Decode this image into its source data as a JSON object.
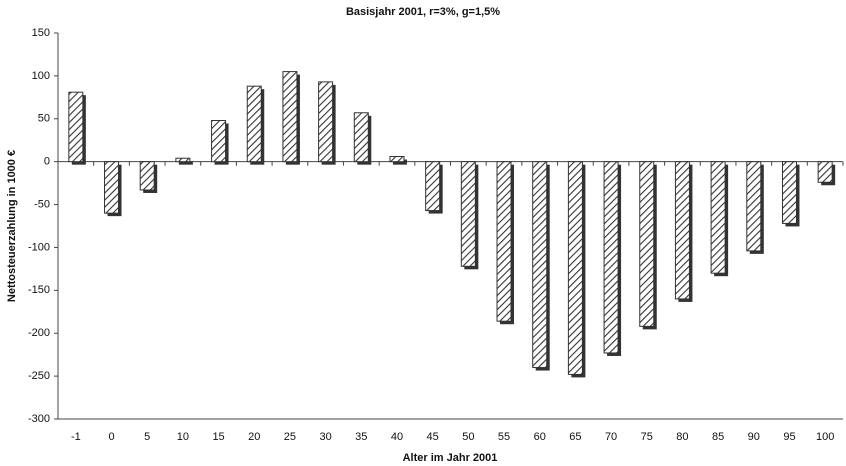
{
  "chart_data": {
    "type": "bar",
    "title": "Basisjahr 2001, r=3%, g=1,5%",
    "x_label": "Alter im Jahr 2001",
    "y_label": "Nettosteuerzahlung in 1000 €",
    "categories": [
      "-1",
      "0",
      "5",
      "10",
      "15",
      "20",
      "25",
      "30",
      "35",
      "40",
      "45",
      "50",
      "55",
      "60",
      "65",
      "70",
      "75",
      "80",
      "85",
      "90",
      "95",
      "100"
    ],
    "values": [
      81,
      -60,
      -33,
      4,
      48,
      88,
      105,
      93,
      57,
      6,
      -57,
      -122,
      -186,
      -240,
      -248,
      -223,
      -192,
      -160,
      -130,
      -104,
      -72,
      -24
    ],
    "color": "#333333",
    "ylim": [
      -300,
      150
    ],
    "yticks": [
      -300,
      -250,
      -200,
      -150,
      -100,
      -50,
      0,
      50,
      100,
      150
    ],
    "grid": false
  }
}
